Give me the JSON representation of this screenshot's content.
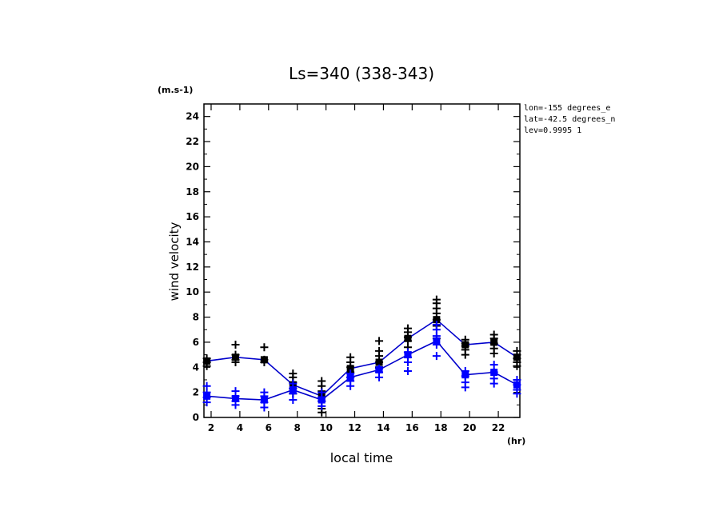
{
  "chart_data": {
    "type": "line",
    "title": "Ls=340 (338-343)",
    "xlabel": "local time",
    "ylabel": "wind velocity",
    "y_unit": "(m.s-1)",
    "x_unit": "(hr)",
    "xlim": [
      1.5,
      23.5
    ],
    "ylim": [
      0,
      25
    ],
    "x_ticks": [
      2,
      4,
      6,
      8,
      10,
      12,
      14,
      16,
      18,
      20,
      22
    ],
    "y_ticks": [
      0,
      2,
      4,
      6,
      8,
      10,
      12,
      14,
      16,
      18,
      20,
      22,
      24
    ],
    "info": [
      "lon=-155 degrees_e",
      "lat=-42.5 degrees_n",
      "lev=0.9995 1"
    ],
    "x": [
      1.7,
      3.7,
      5.7,
      7.7,
      9.7,
      11.7,
      13.7,
      15.7,
      17.7,
      19.7,
      21.7,
      23.3
    ],
    "series": [
      {
        "color": "#000000",
        "line_color": "#0000cc",
        "means": [
          4.5,
          4.8,
          4.6,
          2.6,
          1.7,
          3.9,
          4.4,
          6.3,
          7.8,
          5.8,
          6.0,
          4.8
        ],
        "scatter": [
          [
            4.1,
            4.4,
            4.7
          ],
          [
            4.4,
            4.6,
            5.0,
            5.8
          ],
          [
            4.4,
            4.6,
            5.6
          ],
          [
            1.9,
            2.3,
            2.8,
            3.2,
            3.5
          ],
          [
            0.4,
            0.7,
            1.3,
            2.1,
            2.5,
            2.9
          ],
          [
            3.2,
            3.6,
            4.0,
            4.4,
            4.8
          ],
          [
            4.0,
            4.4,
            4.9,
            5.3,
            6.1
          ],
          [
            5.2,
            5.6,
            6.1,
            6.4,
            6.8,
            7.1
          ],
          [
            6.3,
            7.3,
            7.8,
            8.3,
            8.7,
            9.1,
            9.4
          ],
          [
            5.0,
            5.4,
            5.7,
            5.9,
            6.2
          ],
          [
            5.1,
            5.5,
            5.9,
            6.3,
            6.6
          ],
          [
            4.1,
            4.4,
            4.7,
            5.0,
            5.3
          ]
        ]
      },
      {
        "color": "#0000ff",
        "line_color": "#0000cc",
        "means": [
          1.7,
          1.5,
          1.4,
          2.2,
          1.4,
          3.2,
          3.8,
          5.0,
          6.1,
          3.4,
          3.6,
          2.6
        ],
        "scatter": [
          [
            1.2,
            1.6,
            2.0,
            2.5
          ],
          [
            1.0,
            1.3,
            1.7,
            2.1
          ],
          [
            0.8,
            1.2,
            1.7,
            2.0
          ],
          [
            1.4,
            1.9,
            2.3,
            2.7
          ],
          [
            0.9,
            1.3,
            1.6,
            2.0
          ],
          [
            2.5,
            2.9,
            3.2,
            3.5
          ],
          [
            3.2,
            3.6,
            3.9
          ],
          [
            3.7,
            4.4,
            4.8,
            5.2
          ],
          [
            4.9,
            5.8,
            6.5,
            7.0,
            7.4
          ],
          [
            2.4,
            2.8,
            3.3,
            3.7
          ],
          [
            2.7,
            3.1,
            3.6,
            4.2
          ],
          [
            1.9,
            2.2,
            2.6,
            3.0
          ]
        ]
      }
    ]
  }
}
